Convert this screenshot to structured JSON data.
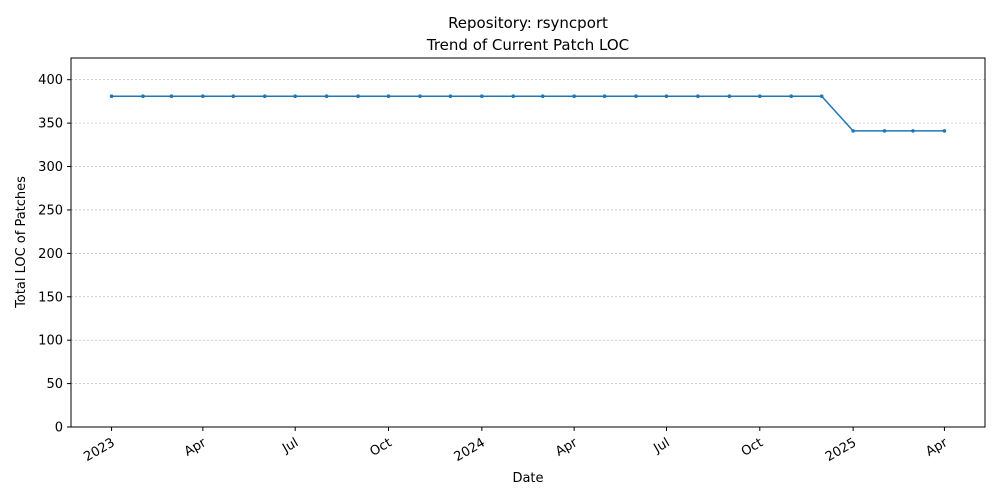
{
  "chart_data": {
    "type": "line",
    "title": "Repository: rsyncport",
    "subtitle": "Trend of Current Patch LOC",
    "xlabel": "Date",
    "ylabel": "Total LOC of Patches",
    "ylim": [
      0,
      425
    ],
    "yticks": [
      0,
      50,
      100,
      150,
      200,
      250,
      300,
      350,
      400
    ],
    "xlim": [
      "2022-11-22",
      "2025-05-11"
    ],
    "xticks": [
      {
        "date": "2023-01-01",
        "label": "2023"
      },
      {
        "date": "2023-04-01",
        "label": "Apr"
      },
      {
        "date": "2023-07-01",
        "label": "Jul"
      },
      {
        "date": "2023-10-01",
        "label": "Oct"
      },
      {
        "date": "2024-01-01",
        "label": "2024"
      },
      {
        "date": "2024-04-01",
        "label": "Apr"
      },
      {
        "date": "2024-07-01",
        "label": "Jul"
      },
      {
        "date": "2024-10-01",
        "label": "Oct"
      },
      {
        "date": "2025-01-01",
        "label": "2025"
      },
      {
        "date": "2025-04-01",
        "label": "Apr"
      }
    ],
    "grid": "y-dashed",
    "color": "#1f77b4",
    "series": [
      {
        "x": [
          "2023-01-01",
          "2023-02-01",
          "2023-03-01",
          "2023-04-01",
          "2023-05-01",
          "2023-06-01",
          "2023-07-01",
          "2023-08-01",
          "2023-09-01",
          "2023-10-01",
          "2023-11-01",
          "2023-12-01",
          "2024-01-01",
          "2024-02-01",
          "2024-03-01",
          "2024-04-01",
          "2024-05-01",
          "2024-06-01",
          "2024-07-01",
          "2024-08-01",
          "2024-09-01",
          "2024-10-01",
          "2024-11-01",
          "2024-12-01",
          "2025-01-01",
          "2025-02-01",
          "2025-03-01",
          "2025-04-01"
        ],
        "y": [
          381,
          381,
          381,
          381,
          381,
          381,
          381,
          381,
          381,
          381,
          381,
          381,
          381,
          381,
          381,
          381,
          381,
          381,
          381,
          381,
          381,
          381,
          381,
          381,
          341,
          341,
          341,
          341
        ]
      }
    ]
  }
}
